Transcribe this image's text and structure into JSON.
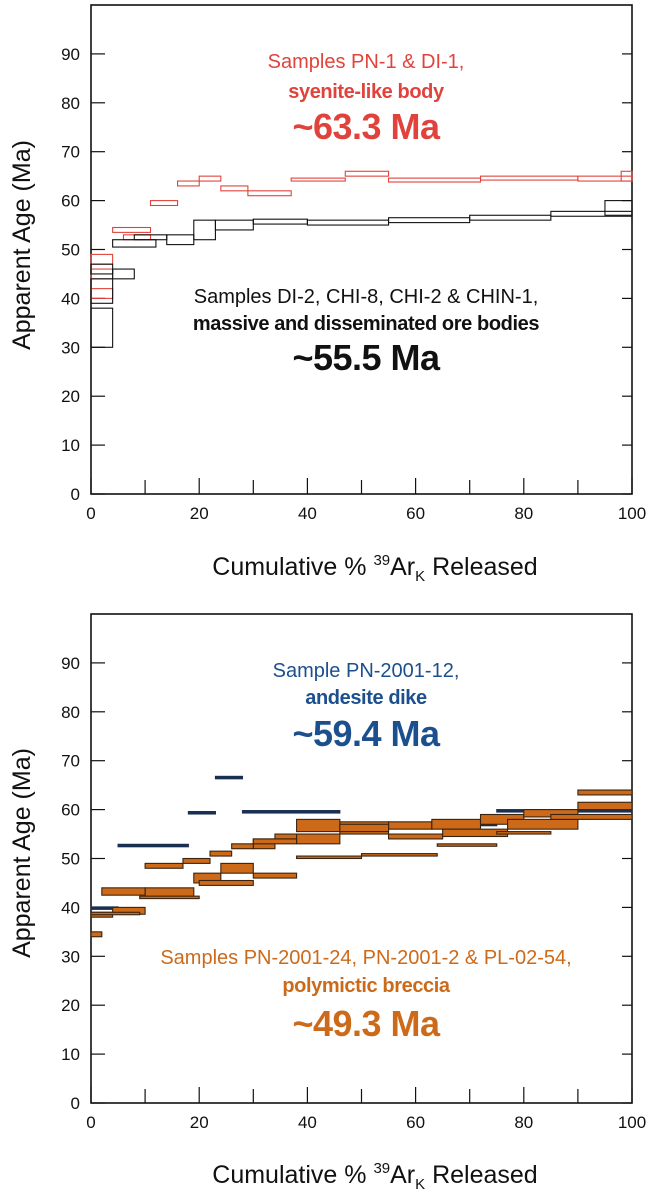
{
  "chart_data": [
    {
      "type": "step-spectrum",
      "xlabel_main": "Cumulative % ",
      "xlabel_sup": "39",
      "xlabel_ar": "Ar",
      "xlabel_sub": "K",
      "xlabel_tail": " Released",
      "ylabel": "Apparent Age (Ma)",
      "xlim": [
        0,
        100
      ],
      "ylim": [
        0,
        100
      ],
      "xticks": [
        0,
        20,
        40,
        60,
        80,
        100
      ],
      "yticks": [
        0,
        10,
        20,
        30,
        40,
        50,
        60,
        70,
        80,
        90
      ],
      "annotations": [
        {
          "lines": [
            "Samples PN-1 & DI-1,"
          ],
          "bold": "syenite-like body",
          "age": "~63.3 Ma",
          "color": "#e0433b"
        },
        {
          "lines": [
            "Samples DI-2, CHI-8, CHI-2 & CHIN-1,"
          ],
          "bold": "massive and disseminated ore bodies",
          "age": "~55.5 Ma",
          "color": "#111111"
        }
      ],
      "series": [
        {
          "name": "PN-1 & DI-1",
          "color": "#e0433b",
          "fill": "none",
          "steps": [
            [
              0,
              4,
              40,
              42
            ],
            [
              0,
              4,
              44,
              46
            ],
            [
              0,
              4,
              47,
              49
            ],
            [
              4,
              11,
              53.5,
              54.5
            ],
            [
              6,
              11,
              52,
              53
            ],
            [
              11,
              16,
              59,
              60
            ],
            [
              16,
              20,
              63,
              64
            ],
            [
              20,
              24,
              64,
              65
            ],
            [
              24,
              29,
              62,
              63
            ],
            [
              29,
              37,
              61,
              62
            ],
            [
              37,
              47,
              64,
              64.6
            ],
            [
              47,
              55,
              65,
              66
            ],
            [
              55,
              72,
              63.8,
              64.6
            ],
            [
              72,
              90,
              64.2,
              65
            ],
            [
              90,
              100,
              64,
              65
            ],
            [
              98,
              100,
              64,
              66
            ]
          ]
        },
        {
          "name": "DI-2, CHI-8, CHI-2 & CHIN-1",
          "color": "#111111",
          "fill": "none",
          "steps": [
            [
              0,
              4,
              30,
              38
            ],
            [
              0,
              4,
              39,
              44
            ],
            [
              0,
              4,
              45,
              47
            ],
            [
              4,
              8,
              44,
              46
            ],
            [
              4,
              12,
              50.5,
              52
            ],
            [
              8,
              14,
              52,
              53
            ],
            [
              14,
              19,
              51,
              53
            ],
            [
              19,
              23,
              52,
              56
            ],
            [
              23,
              30,
              54,
              56
            ],
            [
              30,
              40,
              55.2,
              56.2
            ],
            [
              40,
              55,
              55,
              56
            ],
            [
              55,
              70,
              55.5,
              56.5
            ],
            [
              70,
              85,
              56,
              57
            ],
            [
              85,
              100,
              56.8,
              57.8
            ],
            [
              95,
              100,
              57,
              60
            ]
          ]
        }
      ]
    },
    {
      "type": "step-spectrum",
      "xlabel_main": "Cumulative % ",
      "xlabel_sup": "39",
      "xlabel_ar": "Ar",
      "xlabel_sub": "K",
      "xlabel_tail": " Released",
      "ylabel": "Apparent Age (Ma)",
      "xlim": [
        0,
        100
      ],
      "ylim": [
        0,
        100
      ],
      "xticks": [
        0,
        20,
        40,
        60,
        80,
        100
      ],
      "yticks": [
        0,
        10,
        20,
        30,
        40,
        50,
        60,
        70,
        80,
        90
      ],
      "annotations": [
        {
          "lines": [
            "Sample PN-2001-12,"
          ],
          "bold": "andesite dike",
          "age": "~59.4 Ma",
          "color": "#1b4f8e"
        },
        {
          "lines": [
            "Samples PN-2001-24, PN-2001-2 & PL-02-54,"
          ],
          "bold": "polymictic breccia",
          "age": "~49.3 Ma",
          "color": "#cc6a1a"
        }
      ],
      "series": [
        {
          "name": "PN-2001-12",
          "color": "#1b3050",
          "fill": "#1b3050",
          "steps": [
            [
              0,
              5,
              39.6,
              40.1
            ],
            [
              5,
              18,
              52.4,
              52.9
            ],
            [
              18,
              23,
              59.1,
              59.6
            ],
            [
              23,
              28,
              66.3,
              66.8
            ],
            [
              28,
              46,
              59.3,
              59.8
            ],
            [
              46,
              75,
              56.7,
              57.2
            ],
            [
              75,
              100,
              59.5,
              60
            ]
          ]
        },
        {
          "name": "PN-2001-24",
          "color": "#3a2410",
          "fill": "#cc6a1a",
          "steps": [
            [
              0,
              4,
              38,
              39
            ],
            [
              4,
              10,
              38.6,
              40
            ],
            [
              10,
              19,
              42,
              44
            ],
            [
              19,
              24,
              45,
              47
            ],
            [
              24,
              30,
              47,
              49
            ],
            [
              30,
              34,
              52,
              54
            ],
            [
              34,
              38,
              54,
              55
            ],
            [
              38,
              46,
              53,
              55
            ],
            [
              46,
              55,
              55,
              57.5
            ],
            [
              55,
              63,
              56,
              57.5
            ],
            [
              63,
              72,
              56,
              58
            ],
            [
              72,
              80,
              57,
              59
            ],
            [
              80,
              90,
              58.5,
              60
            ],
            [
              90,
              100,
              63,
              64
            ]
          ]
        },
        {
          "name": "PN-2001-2",
          "color": "#3a2410",
          "fill": "#cc6a1a",
          "steps": [
            [
              0,
              2,
              34,
              35
            ],
            [
              2,
              10,
              42.5,
              44
            ],
            [
              10,
              17,
              48,
              49
            ],
            [
              17,
              22,
              49,
              50
            ],
            [
              22,
              26,
              50.5,
              51.5
            ],
            [
              26,
              30,
              52,
              53
            ],
            [
              30,
              38,
              53,
              54
            ],
            [
              38,
              46,
              55.5,
              58
            ],
            [
              46,
              55,
              55.5,
              57
            ],
            [
              55,
              65,
              54,
              55
            ],
            [
              65,
              77,
              54.5,
              56
            ],
            [
              77,
              90,
              56,
              58
            ],
            [
              90,
              100,
              60,
              61.5
            ]
          ]
        },
        {
          "name": "PL-02-54",
          "color": "#3a2410",
          "fill": "#cc6a1a",
          "steps": [
            [
              0,
              9,
              38.5,
              39
            ],
            [
              9,
              20,
              41.8,
              42.3
            ],
            [
              20,
              30,
              44.5,
              45.5
            ],
            [
              30,
              38,
              46,
              47
            ],
            [
              38,
              50,
              50,
              50.5
            ],
            [
              50,
              64,
              50.5,
              51
            ],
            [
              64,
              75,
              52.5,
              53
            ],
            [
              75,
              85,
              55,
              55.5
            ],
            [
              85,
              100,
              58,
              59
            ]
          ]
        }
      ]
    }
  ]
}
